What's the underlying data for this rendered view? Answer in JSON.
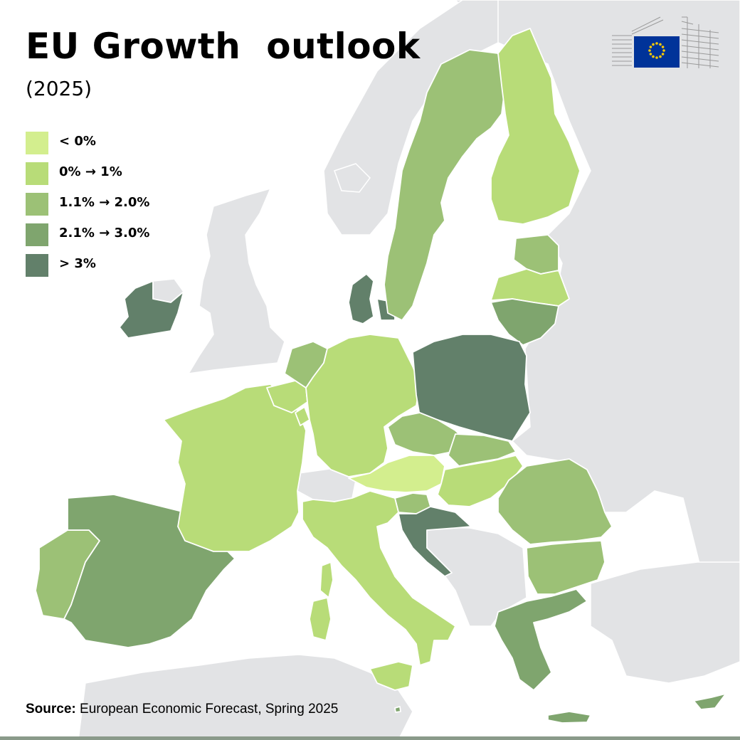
{
  "title": "EU Growth  outlook",
  "subtitle": "(2025)",
  "legend": [
    {
      "label": "< 0%",
      "color": "#d3ee8e"
    },
    {
      "label": "0% → 1%",
      "color": "#b8dc78"
    },
    {
      "label": "1.1% → 2.0%",
      "color": "#9cc176"
    },
    {
      "label": "2.1% → 3.0%",
      "color": "#7fa56e"
    },
    {
      "label": "> 3%",
      "color": "#62806a"
    }
  ],
  "source": {
    "prefix": "Source:",
    "text": " European Economic Forecast, Spring 2025"
  },
  "colors": {
    "sea": "#ffffff",
    "non_eu_land": "#e2e3e5",
    "border": "#ffffff",
    "eu_flag_blue": "#003399",
    "eu_flag_star": "#ffcc00"
  },
  "regions": [
    {
      "name": "ireland",
      "category": 4
    },
    {
      "name": "denmark",
      "category": 4
    },
    {
      "name": "poland",
      "category": 4
    },
    {
      "name": "croatia",
      "category": 4
    },
    {
      "name": "spain",
      "category": 3
    },
    {
      "name": "lithuania",
      "category": 3
    },
    {
      "name": "greece",
      "category": 3
    },
    {
      "name": "cyprus",
      "category": 3
    },
    {
      "name": "malta",
      "category": 3
    },
    {
      "name": "sweden",
      "category": 2
    },
    {
      "name": "estonia",
      "category": 2
    },
    {
      "name": "czechia",
      "category": 2
    },
    {
      "name": "slovakia",
      "category": 2
    },
    {
      "name": "romania",
      "category": 2
    },
    {
      "name": "bulgaria",
      "category": 2
    },
    {
      "name": "portugal",
      "category": 2
    },
    {
      "name": "netherlands",
      "category": 2
    },
    {
      "name": "slovenia",
      "category": 2
    },
    {
      "name": "finland",
      "category": 1
    },
    {
      "name": "latvia",
      "category": 1
    },
    {
      "name": "germany",
      "category": 1
    },
    {
      "name": "france",
      "category": 1
    },
    {
      "name": "italy",
      "category": 1
    },
    {
      "name": "belgium",
      "category": 1
    },
    {
      "name": "luxembourg",
      "category": 1
    },
    {
      "name": "hungary",
      "category": 1
    },
    {
      "name": "sardinia",
      "category": 1
    },
    {
      "name": "corsica",
      "category": 1
    },
    {
      "name": "sicily",
      "category": 1
    },
    {
      "name": "austria",
      "category": 0
    }
  ]
}
